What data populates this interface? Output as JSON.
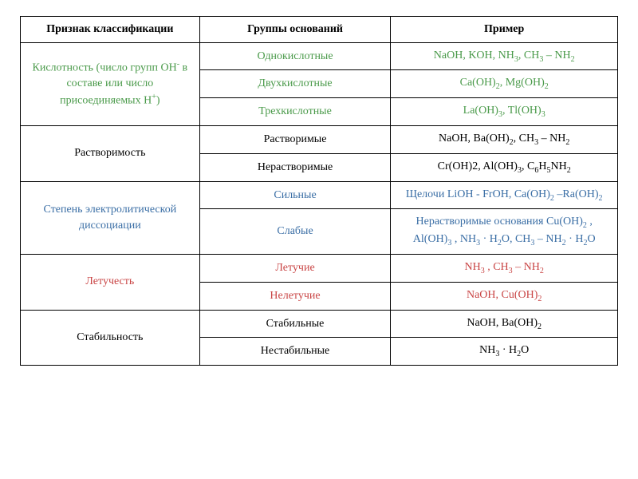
{
  "headers": {
    "col1": "Признак классификации",
    "col2": "Группы оснований",
    "col3": "Пример"
  },
  "rows": [
    {
      "criterion": "Кислотность (число групп OH⁻ в составе или число присоединяемых H⁺)",
      "criterion_color": "green",
      "criterion_rowspan": 3,
      "group": "Однокислотные",
      "group_color": "green",
      "example": "NaOH, KOH, NH₃, CH₃ – NH₂",
      "example_color": "green"
    },
    {
      "group": "Двухкислотные",
      "group_color": "green",
      "example": "Ca(OH)₂, Mg(OH)₂",
      "example_color": "green"
    },
    {
      "group": "Трехкислотные",
      "group_color": "green",
      "example": "La(OH)₃, Tl(OH)₃",
      "example_color": "green"
    },
    {
      "criterion": "Растворимость",
      "criterion_color": "black",
      "criterion_rowspan": 2,
      "group": "Растворимые",
      "group_color": "black",
      "example": "NaOH, Ba(OH)₂, CH₃ – NH₂",
      "example_color": "black"
    },
    {
      "group": "Нерастворимые",
      "group_color": "black",
      "example": "Cr(OH)2, Al(OH)₃, C₆H₅NH₂",
      "example_color": "black"
    },
    {
      "criterion": "Степень электролитической диссоциации",
      "criterion_color": "blue",
      "criterion_rowspan": 2,
      "group": "Сильные",
      "group_color": "blue",
      "example": "Щелочи LiOH - FrOH, Ca(OH)₂ –Ra(OH)₂",
      "example_color": "blue"
    },
    {
      "group": "Слабые",
      "group_color": "blue",
      "example": "Нерастворимые основания Cu(OH)₂ , Al(OH)₃ , NH₃ · H₂O, CH₃ – NH₂ · H₂O",
      "example_color": "blue"
    },
    {
      "criterion": "Летучесть",
      "criterion_color": "red",
      "criterion_rowspan": 2,
      "group": "Летучие",
      "group_color": "red",
      "example": "NH₃ , CH₃ – NH₂",
      "example_color": "red"
    },
    {
      "group": "Нелетучие",
      "group_color": "red",
      "example": "NaOH, Cu(OH)₂",
      "example_color": "red"
    },
    {
      "criterion": "Стабильность",
      "criterion_color": "black",
      "criterion_rowspan": 2,
      "group": "Стабильные",
      "group_color": "black",
      "example": "NaOH, Ba(OH)₂",
      "example_color": "black"
    },
    {
      "group": "Нестабильные",
      "group_color": "black",
      "example": "NH₃ · H₂O",
      "example_color": "black"
    }
  ],
  "styling": {
    "background_color": "#ffffff",
    "border_color": "#000000",
    "font_family": "Times New Roman",
    "base_fontsize": 14,
    "colors": {
      "green": "#4a9a4a",
      "red": "#c94545",
      "blue": "#3a6ea5",
      "black": "#000000"
    },
    "col_widths": [
      "30%",
      "32%",
      "38%"
    ]
  }
}
